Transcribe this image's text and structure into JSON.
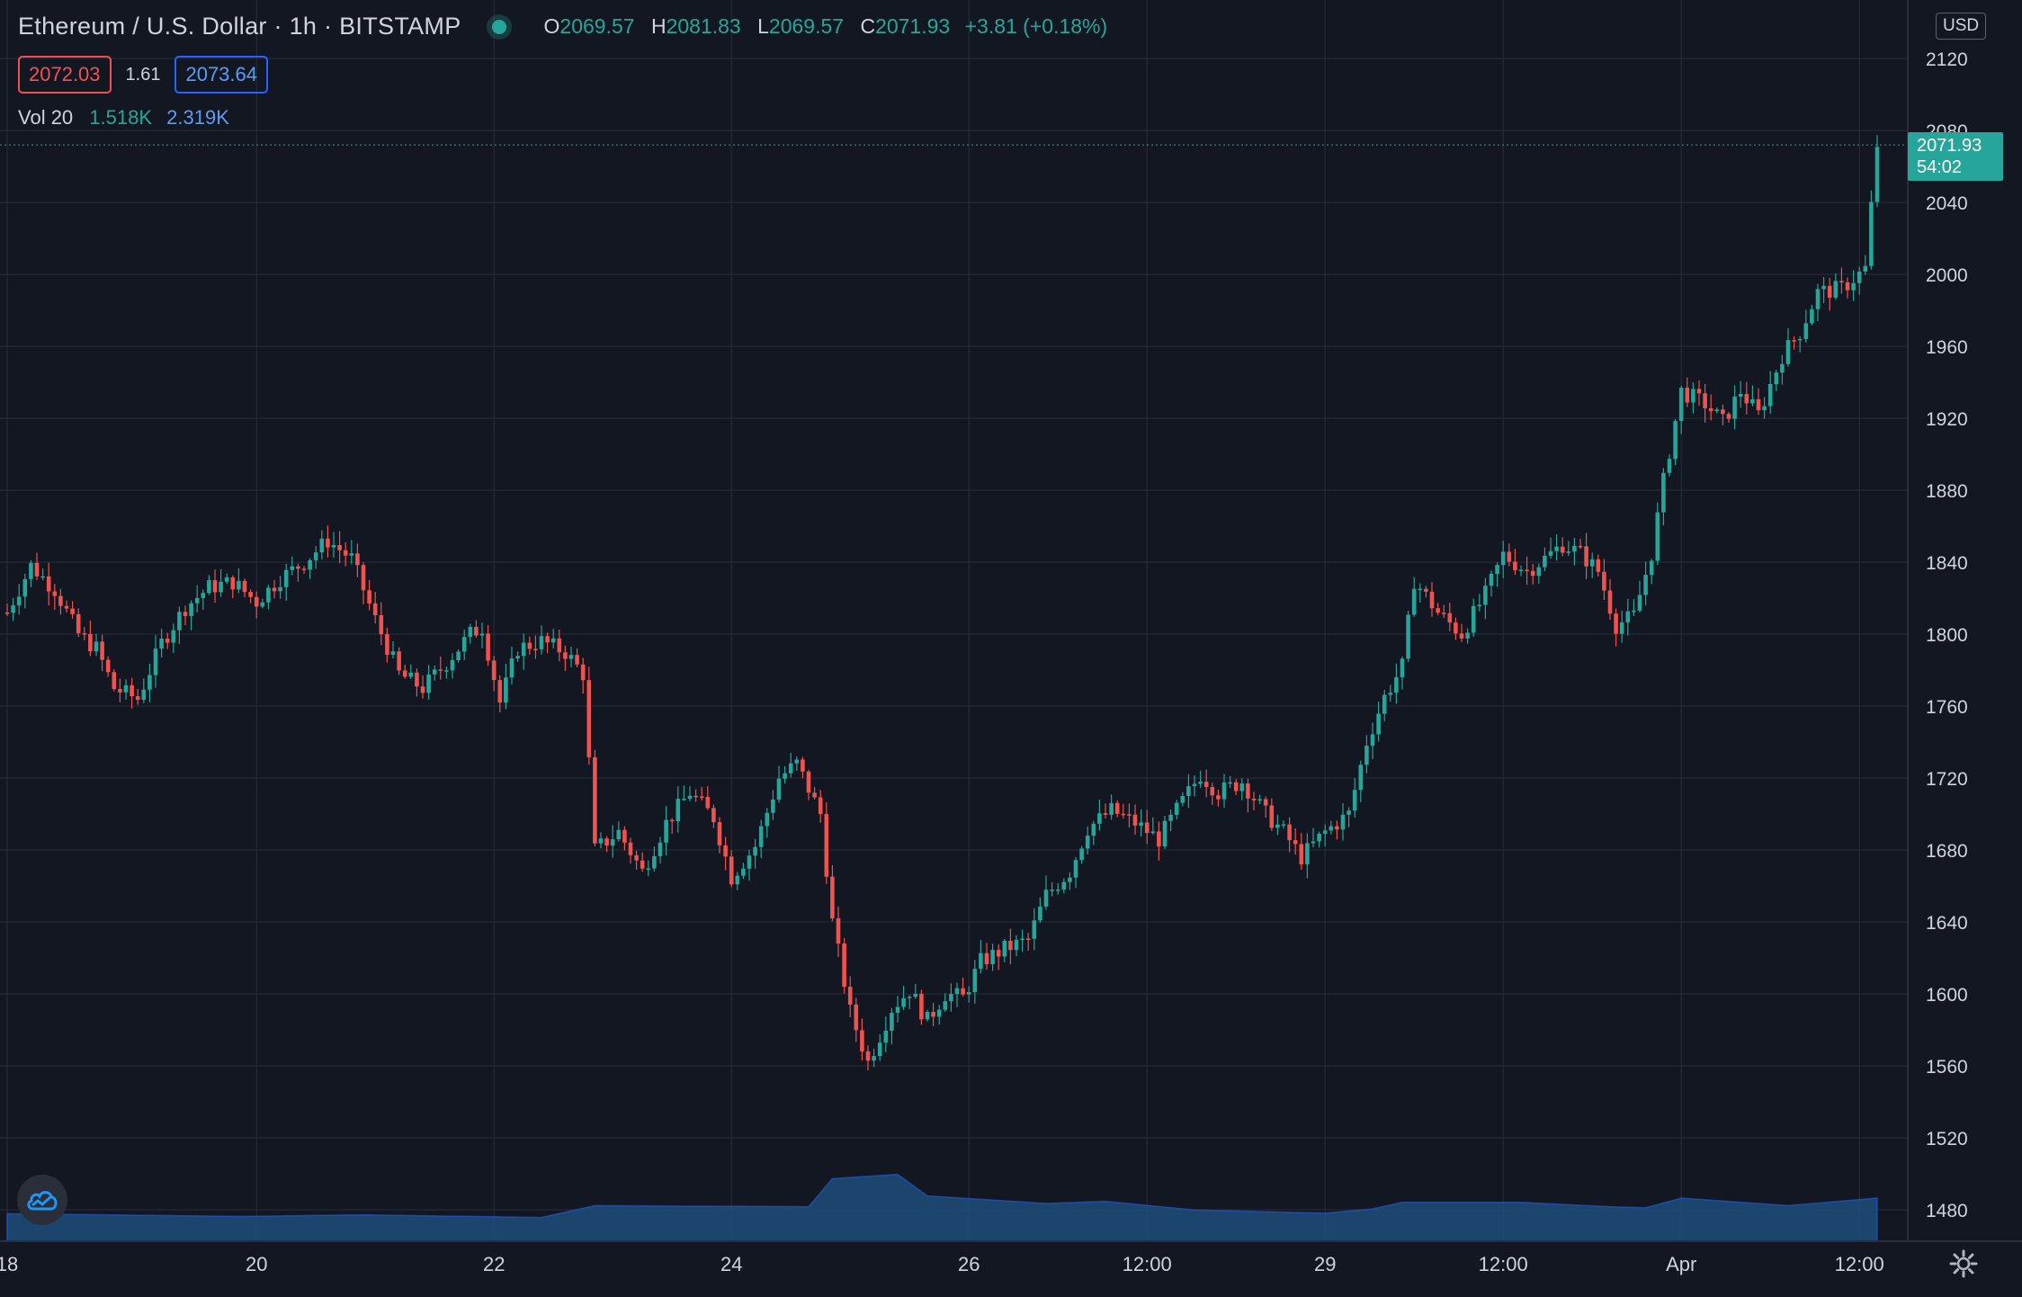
{
  "header": {
    "title": "Ethereum / U.S. Dollar · 1h · BITSTAMP",
    "ohlc": {
      "o_label": "O",
      "o": "2069.57",
      "h_label": "H",
      "h": "2081.83",
      "l_label": "L",
      "l": "2069.57",
      "c_label": "C",
      "c": "2071.93",
      "change": "+3.81 (+0.18%)"
    },
    "bid": "2072.03",
    "spread": "1.61",
    "ask": "2073.64",
    "volume_label": "Vol 20",
    "volume_value": "1.518K",
    "volume_ma": "2.319K",
    "currency": "USD",
    "last_price": "2071.93",
    "countdown": "54:02"
  },
  "colors": {
    "background": "#131722",
    "up": "#26a69a",
    "down": "#ef5350",
    "volume_area": "#1f4e7a",
    "grid": "#2a2e39"
  },
  "icons": {
    "logo": "tradingview-cloud-icon",
    "settings": "gear-icon"
  },
  "chart_data": {
    "type": "candlestick",
    "interval": "1h",
    "y_axis": {
      "ticks": [
        1480,
        1520,
        1560,
        1600,
        1640,
        1680,
        1720,
        1760,
        1800,
        1840,
        1880,
        1920,
        1960,
        2000,
        2040,
        2080,
        2120
      ],
      "ylim": [
        1464,
        2131
      ],
      "grid": true
    },
    "x_axis": {
      "ticks": [
        {
          "label": "18",
          "t": 0
        },
        {
          "label": "20",
          "t": 42
        },
        {
          "label": "22",
          "t": 82
        },
        {
          "label": "24",
          "t": 122
        },
        {
          "label": "26",
          "t": 162
        },
        {
          "label": "12:00",
          "t": 192
        },
        {
          "label": "29",
          "t": 222
        },
        {
          "label": "12:00",
          "t": 252
        },
        {
          "label": "Apr",
          "t": 282
        },
        {
          "label": "12:00",
          "t": 312
        }
      ]
    },
    "close_path": [
      [
        0,
        1812
      ],
      [
        4,
        1838
      ],
      [
        8,
        1825
      ],
      [
        12,
        1800
      ],
      [
        15,
        1792
      ],
      [
        18,
        1770
      ],
      [
        22,
        1764
      ],
      [
        26,
        1795
      ],
      [
        30,
        1815
      ],
      [
        34,
        1826
      ],
      [
        38,
        1829
      ],
      [
        42,
        1818
      ],
      [
        46,
        1831
      ],
      [
        50,
        1840
      ],
      [
        54,
        1852
      ],
      [
        58,
        1842
      ],
      [
        62,
        1808
      ],
      [
        66,
        1778
      ],
      [
        70,
        1770
      ],
      [
        74,
        1784
      ],
      [
        78,
        1800
      ],
      [
        80,
        1804
      ],
      [
        83,
        1762
      ],
      [
        86,
        1792
      ],
      [
        90,
        1796
      ],
      [
        94,
        1790
      ],
      [
        97,
        1778
      ],
      [
        99,
        1680
      ],
      [
        103,
        1690
      ],
      [
        107,
        1668
      ],
      [
        111,
        1695
      ],
      [
        115,
        1712
      ],
      [
        119,
        1698
      ],
      [
        122,
        1665
      ],
      [
        126,
        1682
      ],
      [
        130,
        1720
      ],
      [
        133,
        1728
      ],
      [
        137,
        1700
      ],
      [
        139,
        1640
      ],
      [
        142,
        1590
      ],
      [
        145,
        1562
      ],
      [
        149,
        1592
      ],
      [
        152,
        1602
      ],
      [
        155,
        1585
      ],
      [
        158,
        1600
      ],
      [
        161,
        1598
      ],
      [
        164,
        1618
      ],
      [
        168,
        1625
      ],
      [
        172,
        1630
      ],
      [
        175,
        1655
      ],
      [
        179,
        1668
      ],
      [
        182,
        1692
      ],
      [
        186,
        1702
      ],
      [
        190,
        1695
      ],
      [
        194,
        1686
      ],
      [
        197,
        1702
      ],
      [
        201,
        1722
      ],
      [
        204,
        1712
      ],
      [
        208,
        1718
      ],
      [
        212,
        1700
      ],
      [
        215,
        1690
      ],
      [
        218,
        1676
      ],
      [
        222,
        1690
      ],
      [
        226,
        1700
      ],
      [
        229,
        1740
      ],
      [
        232,
        1765
      ],
      [
        235,
        1782
      ],
      [
        237,
        1830
      ],
      [
        241,
        1812
      ],
      [
        245,
        1800
      ],
      [
        249,
        1822
      ],
      [
        252,
        1844
      ],
      [
        256,
        1835
      ],
      [
        259,
        1842
      ],
      [
        262,
        1850
      ],
      [
        265,
        1845
      ],
      [
        268,
        1835
      ],
      [
        271,
        1805
      ],
      [
        274,
        1810
      ],
      [
        277,
        1845
      ],
      [
        279,
        1885
      ],
      [
        282,
        1935
      ],
      [
        286,
        1928
      ],
      [
        289,
        1918
      ],
      [
        292,
        1935
      ],
      [
        295,
        1922
      ],
      [
        299,
        1955
      ],
      [
        302,
        1968
      ],
      [
        305,
        1990
      ],
      [
        309,
        1992
      ],
      [
        313,
        2003
      ],
      [
        315,
        2072
      ]
    ],
    "volume_area_path": [
      [
        0,
        1.55
      ],
      [
        40,
        1.3
      ],
      [
        60,
        1.45
      ],
      [
        90,
        1.2
      ],
      [
        99,
        2.3
      ],
      [
        115,
        2.25
      ],
      [
        135,
        2.2
      ],
      [
        139,
        4.8
      ],
      [
        150,
        5.2
      ],
      [
        155,
        3.2
      ],
      [
        175,
        2.5
      ],
      [
        185,
        2.7
      ],
      [
        200,
        1.9
      ],
      [
        215,
        1.7
      ],
      [
        222,
        1.6
      ],
      [
        230,
        2.0
      ],
      [
        235,
        2.6
      ],
      [
        255,
        2.6
      ],
      [
        270,
        2.2
      ],
      [
        276,
        2.1
      ],
      [
        282,
        3.0
      ],
      [
        300,
        2.3
      ],
      [
        315,
        3.0
      ]
    ]
  }
}
